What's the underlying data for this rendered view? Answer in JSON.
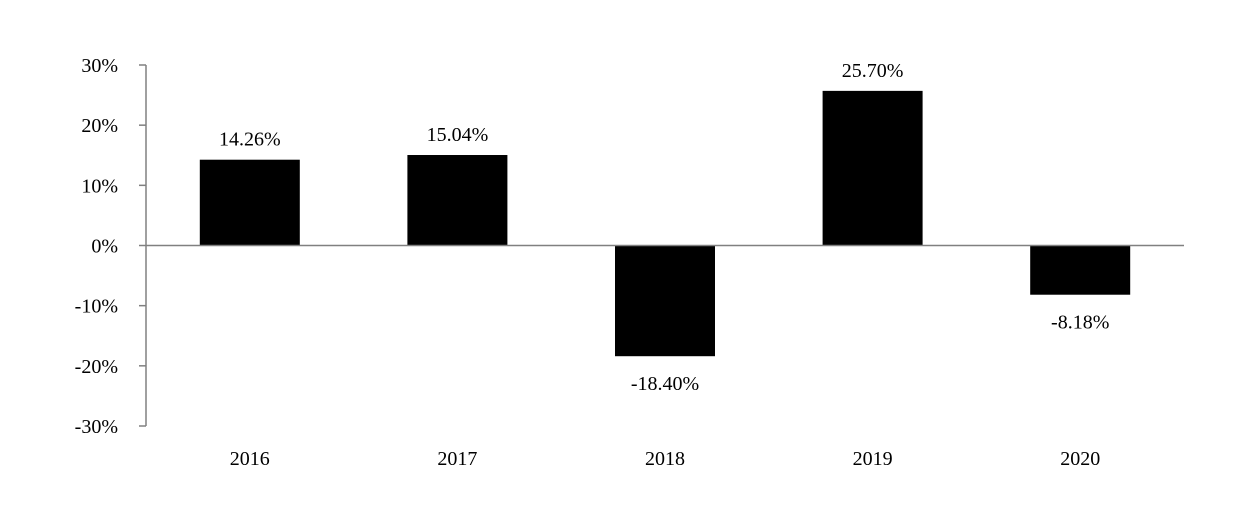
{
  "chart_data": {
    "type": "bar",
    "categories": [
      "2016",
      "2017",
      "2018",
      "2019",
      "2020"
    ],
    "values": [
      14.26,
      15.04,
      -18.4,
      25.7,
      -8.18
    ],
    "data_labels": [
      "14.26%",
      "15.04%",
      "-18.40%",
      "25.70%",
      "-8.18%"
    ],
    "ylim": [
      -30,
      30
    ],
    "yticks": [
      30,
      20,
      10,
      0,
      -10,
      -20,
      -30
    ],
    "ytick_labels": [
      "30%",
      "20%",
      "10%",
      "0%",
      "-10%",
      "-20%",
      "-30%"
    ],
    "title": "",
    "xlabel": "",
    "ylabel": "",
    "grid": false,
    "colors": {
      "bar": "#000000",
      "axis": "#808080"
    }
  }
}
